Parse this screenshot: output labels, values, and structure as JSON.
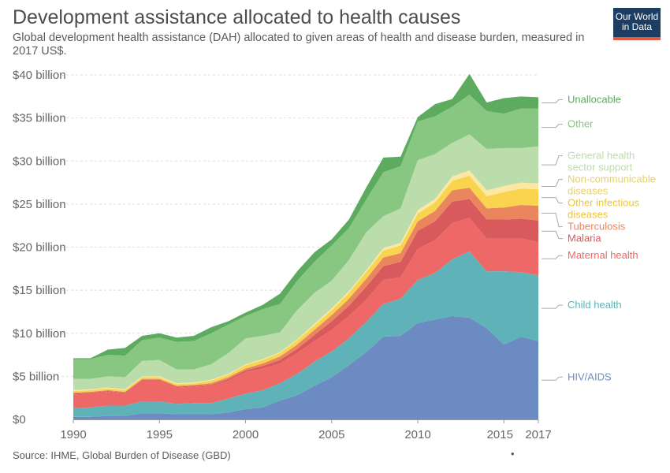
{
  "title": "Development assistance allocated to health causes",
  "subtitle": "Global development health assistance (DAH) allocated to given areas of health and disease burden, measured in 2017 US$.",
  "logo": {
    "line1": "Our World",
    "line2": "in Data"
  },
  "source": "Source: IHME, Global Burden of Disease (GBD)",
  "footer_dot": "•",
  "chart_data": {
    "type": "area",
    "stacked": true,
    "title": "Development assistance allocated to health causes",
    "ylabel": "",
    "xlabel": "",
    "ylim": [
      0,
      40
    ],
    "y_unit": "billion US$ (2017)",
    "y_ticks": [
      0,
      5,
      10,
      15,
      20,
      25,
      30,
      35,
      40
    ],
    "y_tick_labels": [
      "$0",
      "$5 billion",
      "$10 billion",
      "$15 billion",
      "$20 billion",
      "$25 billion",
      "$30 billion",
      "$35 billion",
      "$40 billion"
    ],
    "x_ticks": [
      1990,
      1995,
      2000,
      2005,
      2010,
      2015,
      2017
    ],
    "x_tick_labels": [
      "1990",
      "1995",
      "2000",
      "2005",
      "2010",
      "2015",
      "2017"
    ],
    "grid": "horizontal dashed",
    "legend": "right, labels at series ends",
    "x": [
      1990,
      1991,
      1992,
      1993,
      1994,
      1995,
      1996,
      1997,
      1998,
      1999,
      2000,
      2001,
      2002,
      2003,
      2004,
      2005,
      2006,
      2007,
      2008,
      2009,
      2010,
      2011,
      2012,
      2013,
      2014,
      2015,
      2016,
      2017
    ],
    "series": [
      {
        "name": "HIV/AIDS",
        "label_lines": [
          "HIV/AIDS"
        ],
        "color": "#6d8bc3",
        "values": [
          0.3,
          0.3,
          0.4,
          0.4,
          0.7,
          0.7,
          0.6,
          0.6,
          0.6,
          0.8,
          1.2,
          1.4,
          2.2,
          2.8,
          3.9,
          4.9,
          6.3,
          7.8,
          9.6,
          9.7,
          11.2,
          11.6,
          12.0,
          11.8,
          10.6,
          8.7,
          9.6,
          9.1
        ]
      },
      {
        "name": "Child health",
        "label_lines": [
          "Child health"
        ],
        "color": "#5fb3b8",
        "values": [
          1.0,
          1.1,
          1.2,
          1.2,
          1.4,
          1.4,
          1.2,
          1.3,
          1.3,
          1.6,
          1.8,
          2.0,
          2.0,
          2.5,
          2.8,
          3.0,
          3.1,
          3.5,
          3.8,
          4.3,
          5.0,
          5.4,
          6.6,
          7.7,
          6.6,
          8.5,
          7.5,
          7.6
        ]
      },
      {
        "name": "Maternal health",
        "label_lines": [
          "Maternal health"
        ],
        "color": "#ee6867",
        "values": [
          1.6,
          1.6,
          1.6,
          1.4,
          2.4,
          2.4,
          1.9,
          1.9,
          2.0,
          2.1,
          2.5,
          2.5,
          2.3,
          2.4,
          2.4,
          2.5,
          2.6,
          2.6,
          2.8,
          2.5,
          3.6,
          3.8,
          4.2,
          3.9,
          3.8,
          3.8,
          3.9,
          3.9
        ]
      },
      {
        "name": "Malaria",
        "label_lines": [
          "Malaria"
        ],
        "color": "#d85a5c",
        "values": [
          0.1,
          0.1,
          0.1,
          0.1,
          0.1,
          0.1,
          0.1,
          0.1,
          0.1,
          0.2,
          0.2,
          0.3,
          0.4,
          0.5,
          0.7,
          1.0,
          1.2,
          1.5,
          1.6,
          1.8,
          2.1,
          2.2,
          2.5,
          2.2,
          2.2,
          2.2,
          2.3,
          2.5
        ]
      },
      {
        "name": "Tuberculosis",
        "label_lines": [
          "Tuberculosis"
        ],
        "color": "#e9865e",
        "values": [
          0.1,
          0.1,
          0.1,
          0.1,
          0.1,
          0.1,
          0.1,
          0.1,
          0.2,
          0.2,
          0.2,
          0.3,
          0.4,
          0.5,
          0.6,
          0.7,
          0.8,
          0.9,
          1.0,
          1.0,
          1.1,
          1.2,
          1.3,
          1.3,
          1.3,
          1.4,
          1.6,
          1.7
        ]
      },
      {
        "name": "Other infectious diseases",
        "label_lines": [
          "Other infectious",
          "diseases"
        ],
        "color": "#fad44f",
        "values": [
          0.2,
          0.2,
          0.2,
          0.2,
          0.2,
          0.2,
          0.2,
          0.2,
          0.3,
          0.3,
          0.4,
          0.4,
          0.4,
          0.5,
          0.5,
          0.6,
          0.7,
          0.8,
          0.8,
          0.9,
          0.9,
          1.0,
          1.1,
          1.4,
          1.4,
          1.8,
          1.9,
          1.9
        ]
      },
      {
        "name": "Non-communicable diseases",
        "label_lines": [
          "Non-communicable",
          "diseases"
        ],
        "color": "#fbe9a3",
        "values": [
          0.1,
          0.1,
          0.1,
          0.1,
          0.1,
          0.1,
          0.1,
          0.1,
          0.1,
          0.1,
          0.1,
          0.1,
          0.1,
          0.1,
          0.2,
          0.2,
          0.2,
          0.2,
          0.3,
          0.3,
          0.4,
          0.4,
          0.5,
          0.6,
          0.7,
          0.7,
          0.7,
          0.7
        ]
      },
      {
        "name": "General health sector support",
        "label_lines": [
          "General health",
          "sector support"
        ],
        "color": "#bbdcab",
        "values": [
          1.3,
          1.2,
          1.3,
          1.4,
          1.8,
          1.9,
          1.6,
          1.5,
          1.8,
          2.4,
          3.0,
          2.7,
          2.3,
          3.4,
          3.6,
          3.2,
          3.6,
          4.4,
          3.7,
          4.0,
          5.8,
          5.2,
          3.9,
          4.2,
          4.8,
          4.4,
          4.0,
          4.3
        ]
      },
      {
        "name": "Other",
        "label_lines": [
          "Other"
        ],
        "color": "#88c781",
        "values": [
          2.3,
          2.3,
          2.5,
          2.5,
          2.4,
          2.6,
          3.2,
          3.3,
          3.6,
          3.3,
          2.6,
          3.1,
          3.3,
          3.4,
          3.6,
          4.1,
          3.7,
          3.8,
          5.1,
          4.9,
          4.5,
          4.4,
          4.2,
          4.6,
          4.4,
          4.0,
          4.6,
          4.4
        ]
      },
      {
        "name": "Unallocable",
        "label_lines": [
          "Unallocable"
        ],
        "color": "#5cab5e",
        "values": [
          0.1,
          0.1,
          0.6,
          0.9,
          0.5,
          0.5,
          0.5,
          0.6,
          0.7,
          0.4,
          0.4,
          0.5,
          1.2,
          1.1,
          1.1,
          0.7,
          1.0,
          1.4,
          1.7,
          1.1,
          0.5,
          1.4,
          0.9,
          2.4,
          1.0,
          1.8,
          1.4,
          1.3
        ]
      }
    ]
  }
}
